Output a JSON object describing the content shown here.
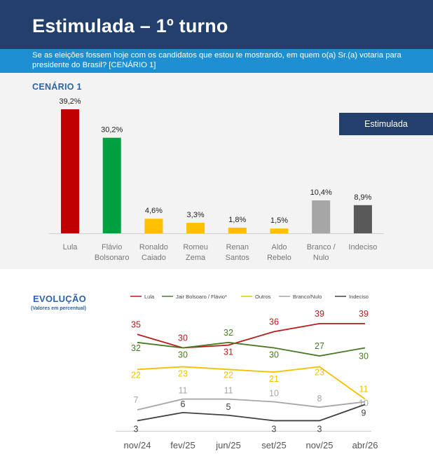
{
  "header": {
    "title": "Estimulada – 1º turno",
    "question": "Se as eleições fossem hoje com os candidatos que estou te mostrando, em quem o(a) Sr.(a) votaria para presidente do Brasil? [CENÁRIO 1]"
  },
  "scenario": {
    "label": "CENÁRIO 1",
    "badge": "Estimulada"
  },
  "evolution": {
    "title": "EVOLUÇÃO",
    "subtitle": "(Valores em percentual)"
  },
  "chart_data": [
    {
      "type": "bar",
      "title": "",
      "categories": [
        [
          "Lula"
        ],
        [
          "Flávio",
          "Bolsonaro"
        ],
        [
          "Ronaldo",
          "Caiado"
        ],
        [
          "Romeu",
          "Zema"
        ],
        [
          "Renan",
          "Santos"
        ],
        [
          "Aldo",
          "Rebelo"
        ],
        [
          "Branco /",
          "Nulo"
        ],
        [
          "Indeciso"
        ]
      ],
      "values": [
        39.2,
        30.2,
        4.6,
        3.3,
        1.8,
        1.5,
        10.4,
        8.9
      ],
      "value_labels": [
        "39,2%",
        "30,2%",
        "4,6%",
        "3,3%",
        "1,8%",
        "1,5%",
        "10,4%",
        "8,9%"
      ],
      "colors": [
        "#c00000",
        "#00a040",
        "#ffc000",
        "#ffc000",
        "#ffc000",
        "#ffc000",
        "#a6a6a6",
        "#595959"
      ],
      "ylim": [
        0,
        40
      ]
    },
    {
      "type": "line",
      "x": [
        "nov/24",
        "fev/25",
        "jun/25",
        "set/25",
        "nov/25",
        "abr/26"
      ],
      "ylim": [
        0,
        40
      ],
      "legend_position": "top",
      "series": [
        {
          "name": "Lula",
          "color": "#b71c1c",
          "values": [
            35,
            30,
            31,
            36,
            39,
            39
          ],
          "labels": [
            "35",
            "30",
            "31",
            "36",
            "39",
            "39"
          ]
        },
        {
          "name": "Jair Bolsoaro / Flávio*",
          "color": "#4a7a25",
          "values": [
            32,
            30,
            32,
            30,
            27,
            30
          ],
          "labels": [
            "32",
            "30",
            "32",
            "30",
            "27",
            "30"
          ]
        },
        {
          "name": "Outros",
          "color": "#f5c000",
          "values": [
            22,
            23,
            22,
            21,
            23,
            11
          ],
          "labels": [
            "22",
            "23",
            "22",
            "21",
            "23",
            "11"
          ]
        },
        {
          "name": "Branco/Nulo",
          "color": "#a6a6a6",
          "values": [
            7,
            11,
            11,
            10,
            8,
            10
          ],
          "labels": [
            "7",
            "11",
            "11",
            "10",
            "8",
            "10"
          ]
        },
        {
          "name": "Indeciso",
          "color": "#404040",
          "values": [
            3,
            6,
            5,
            3,
            3,
            9
          ],
          "labels": [
            "3",
            "6",
            "5",
            "3",
            "3",
            "9"
          ]
        }
      ]
    }
  ]
}
